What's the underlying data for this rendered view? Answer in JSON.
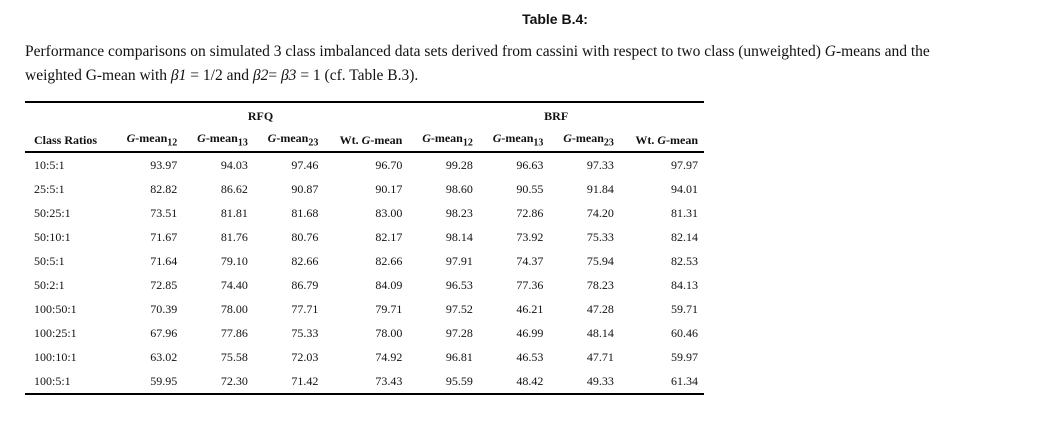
{
  "title": "Table B.4:",
  "caption": {
    "line1": "Performance comparisons on simulated 3 class imbalanced data sets derived from cassini with respect to two class (unweighted) ",
    "g": "G",
    "line1b": "-means and the",
    "line2a": "weighted G-mean with ",
    "b1": "β1",
    "line2b": " = 1/2 and ",
    "b2": "β2",
    "eq": "= ",
    "b3": "β3",
    "line2c": " = 1 (cf. Table B.3)."
  },
  "table": {
    "groups": [
      "RFQ",
      "BRF"
    ],
    "columns": [
      "Class Ratios",
      "G-mean12",
      "G-mean13",
      "G-mean23",
      "Wt. G-mean",
      "G-mean12",
      "G-mean13",
      "G-mean23",
      "Wt. G-mean"
    ],
    "rows": [
      [
        "10:5:1",
        "93.97",
        "94.03",
        "97.46",
        "96.70",
        "99.28",
        "96.63",
        "97.33",
        "97.97"
      ],
      [
        "25:5:1",
        "82.82",
        "86.62",
        "90.87",
        "90.17",
        "98.60",
        "90.55",
        "91.84",
        "94.01"
      ],
      [
        "50:25:1",
        "73.51",
        "81.81",
        "81.68",
        "83.00",
        "98.23",
        "72.86",
        "74.20",
        "81.31"
      ],
      [
        "50:10:1",
        "71.67",
        "81.76",
        "80.76",
        "82.17",
        "98.14",
        "73.92",
        "75.33",
        "82.14"
      ],
      [
        "50:5:1",
        "71.64",
        "79.10",
        "82.66",
        "82.66",
        "97.91",
        "74.37",
        "75.94",
        "82.53"
      ],
      [
        "50:2:1",
        "72.85",
        "74.40",
        "86.79",
        "84.09",
        "96.53",
        "77.36",
        "78.23",
        "84.13"
      ],
      [
        "100:50:1",
        "70.39",
        "78.00",
        "77.71",
        "79.71",
        "97.52",
        "46.21",
        "47.28",
        "59.71"
      ],
      [
        "100:25:1",
        "67.96",
        "77.86",
        "75.33",
        "78.00",
        "97.28",
        "46.99",
        "48.14",
        "60.46"
      ],
      [
        "100:10:1",
        "63.02",
        "75.58",
        "72.03",
        "74.92",
        "96.81",
        "46.53",
        "47.71",
        "59.97"
      ],
      [
        "100:5:1",
        "59.95",
        "72.30",
        "71.42",
        "73.43",
        "95.59",
        "48.42",
        "49.33",
        "61.34"
      ]
    ]
  }
}
